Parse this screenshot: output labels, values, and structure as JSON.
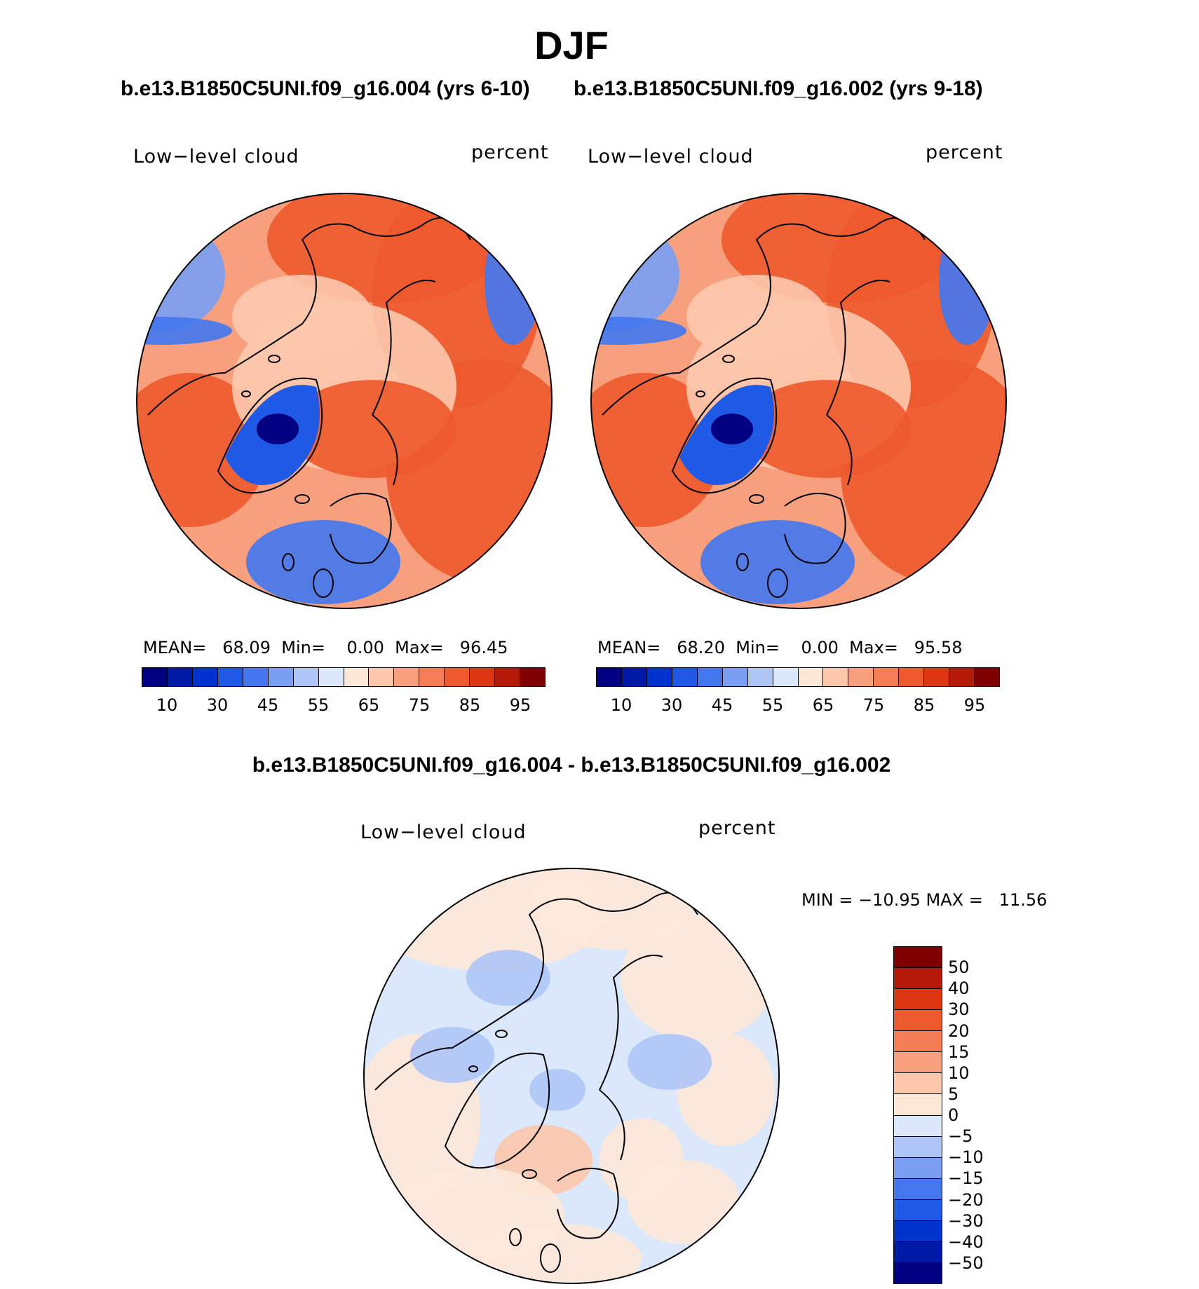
{
  "title": "DJF",
  "panels": [
    {
      "case_label": "b.e13.B1850C5UNI.f09_g16.004 (yrs 6-10)",
      "variable": "Low−level cloud",
      "units": "percent",
      "stats": {
        "mean_label": "MEAN=",
        "mean": "68.09",
        "min_label": "Min=",
        "min": "0.00",
        "max_label": "Max=",
        "max": "96.45"
      }
    },
    {
      "case_label": "b.e13.B1850C5UNI.f09_g16.002 (yrs 9-18)",
      "variable": "Low−level cloud",
      "units": "percent",
      "stats": {
        "mean_label": "MEAN=",
        "mean": "68.20",
        "min_label": "Min=",
        "min": "0.00",
        "max_label": "Max=",
        "max": "95.58"
      }
    }
  ],
  "diff_panel": {
    "title": "b.e13.B1850C5UNI.f09_g16.004 - b.e13.B1850C5UNI.f09_g16.002",
    "variable": "Low−level cloud",
    "units": "percent",
    "minmax": "MIN = −10.95 MAX =   11.56"
  },
  "colorbar_main": {
    "tick_labels": [
      "10",
      "30",
      "45",
      "55",
      "65",
      "75",
      "85",
      "95"
    ],
    "colors": [
      "#000080",
      "#0019a6",
      "#0033cc",
      "#1f5ae6",
      "#4477ee",
      "#7a9ef2",
      "#aec5f6",
      "#dbe8fb",
      "#fde8d8",
      "#fcc7ab",
      "#f8a07d",
      "#f47d55",
      "#ee5a2e",
      "#dc3612",
      "#b51a08",
      "#7f0000"
    ]
  },
  "colorbar_diff": {
    "tick_labels": [
      "50",
      "40",
      "30",
      "20",
      "15",
      "10",
      "5",
      "0",
      "−5",
      "−10",
      "−15",
      "−20",
      "−30",
      "−40",
      "−50"
    ],
    "colors": [
      "#7f0000",
      "#b51a08",
      "#dc3612",
      "#ee5a2e",
      "#f47d55",
      "#f8a07d",
      "#fcc7ab",
      "#fde8d8",
      "#dbe8fb",
      "#aec5f6",
      "#7a9ef2",
      "#4477ee",
      "#1f5ae6",
      "#0033cc",
      "#0019a6",
      "#000080"
    ]
  },
  "map_colors": {
    "ocean_high": "#ee5a2e",
    "ocean_mid": "#f8a07d",
    "ice_low": "#fcc7ab",
    "greenland": "#1f5ae6",
    "greenland_core": "#000080",
    "pacific_low": "#7a9ef2",
    "atlantic_low": "#4477ee",
    "diff_base": "#dbe8fb",
    "diff_pos": "#fde8d8",
    "diff_pos2": "#fcc7ab",
    "diff_neg": "#aec5f6",
    "coast": "#000000"
  }
}
